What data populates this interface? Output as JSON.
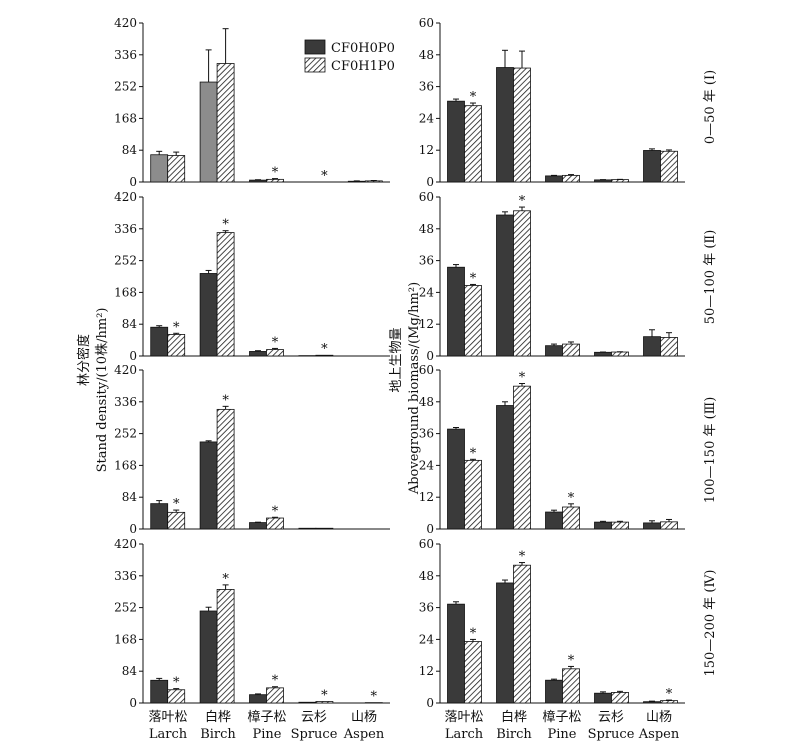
{
  "chart_data": {
    "type": "bar",
    "categories_cn": [
      "落叶松",
      "白桦",
      "樟子松",
      "云杉",
      "山杨"
    ],
    "categories_en": [
      "Larch",
      "Birch",
      "Pine",
      "Spruce",
      "Aspen"
    ],
    "series_names": [
      "CF0H0P0",
      "CF0H1P0"
    ],
    "periods": [
      "0—50 年 (Ⅰ)",
      "50—100 年 (Ⅱ)",
      "100—150 年 (Ⅲ)",
      "150—200 年 (Ⅳ)"
    ],
    "density": {
      "ylabel_cn": "林分密度",
      "ylabel_en": "Stand density/(10株/hm²)",
      "ylim": [
        0,
        420
      ],
      "ticks": [
        0,
        84,
        168,
        252,
        336,
        420
      ],
      "panels": [
        {
          "values": [
            [
              72,
              70
            ],
            [
              264,
              313
            ],
            [
              5,
              7
            ],
            [
              0,
              0
            ],
            [
              2,
              3
            ]
          ],
          "errors": [
            [
              9,
              9
            ],
            [
              85,
              92
            ],
            [
              1,
              2
            ],
            [
              0,
              0
            ],
            [
              1,
              1
            ]
          ],
          "stars": [
            [
              false,
              false
            ],
            [
              false,
              false
            ],
            [
              false,
              true
            ],
            [
              false,
              true
            ],
            [
              false,
              false
            ]
          ]
        },
        {
          "values": [
            [
              76,
              57
            ],
            [
              218,
              326
            ],
            [
              12,
              17
            ],
            [
              1,
              2
            ],
            [
              0,
              0
            ]
          ],
          "errors": [
            [
              4,
              3
            ],
            [
              8,
              5
            ],
            [
              2,
              3
            ],
            [
              0,
              0
            ],
            [
              0,
              0
            ]
          ],
          "stars": [
            [
              false,
              true
            ],
            [
              false,
              true
            ],
            [
              false,
              true
            ],
            [
              false,
              true
            ],
            [
              false,
              false
            ]
          ]
        },
        {
          "values": [
            [
              67,
              44
            ],
            [
              230,
              316
            ],
            [
              17,
              29
            ],
            [
              2,
              2
            ],
            [
              0,
              0
            ]
          ],
          "errors": [
            [
              8,
              6
            ],
            [
              3,
              8
            ],
            [
              1,
              2
            ],
            [
              0,
              0
            ],
            [
              0,
              0
            ]
          ],
          "stars": [
            [
              false,
              true
            ],
            [
              false,
              true
            ],
            [
              false,
              true
            ],
            [
              false,
              false
            ],
            [
              false,
              false
            ]
          ]
        },
        {
          "values": [
            [
              60,
              35
            ],
            [
              243,
              300
            ],
            [
              22,
              40
            ],
            [
              2,
              4
            ],
            [
              0,
              1
            ]
          ],
          "errors": [
            [
              5,
              3
            ],
            [
              10,
              12
            ],
            [
              2,
              3
            ],
            [
              0,
              0
            ],
            [
              0,
              0
            ]
          ],
          "stars": [
            [
              false,
              true
            ],
            [
              false,
              true
            ],
            [
              false,
              true
            ],
            [
              false,
              true
            ],
            [
              false,
              true
            ]
          ]
        }
      ]
    },
    "biomass": {
      "ylabel_cn": "地上生物量",
      "ylabel_en": "Aboveground biomass/(Mg/hm²)",
      "ylim": [
        0,
        60
      ],
      "ticks": [
        0,
        12,
        24,
        36,
        48,
        60
      ],
      "panels": [
        {
          "values": [
            [
              30.5,
              28.8
            ],
            [
              43.2,
              43.0
            ],
            [
              2.3,
              2.5
            ],
            [
              0.8,
              0.9
            ],
            [
              11.9,
              11.6
            ]
          ],
          "errors": [
            [
              0.8,
              1.0
            ],
            [
              6.5,
              6.4
            ],
            [
              0.2,
              0.3
            ],
            [
              0.1,
              0.1
            ],
            [
              0.6,
              0.5
            ]
          ],
          "stars": [
            [
              false,
              true
            ],
            [
              false,
              false
            ],
            [
              false,
              false
            ],
            [
              false,
              false
            ],
            [
              false,
              false
            ]
          ]
        },
        {
          "values": [
            [
              33.5,
              26.6
            ],
            [
              53.2,
              54.8
            ],
            [
              3.9,
              4.5
            ],
            [
              1.4,
              1.5
            ],
            [
              7.3,
              7.0
            ]
          ],
          "errors": [
            [
              1.0,
              0.4
            ],
            [
              1.2,
              1.4
            ],
            [
              0.6,
              0.8
            ],
            [
              0.1,
              0.1
            ],
            [
              2.6,
              1.8
            ]
          ],
          "stars": [
            [
              false,
              true
            ],
            [
              false,
              true
            ],
            [
              false,
              false
            ],
            [
              false,
              false
            ],
            [
              false,
              false
            ]
          ]
        },
        {
          "values": [
            [
              37.7,
              25.9
            ],
            [
              46.6,
              53.9
            ],
            [
              6.4,
              8.3
            ],
            [
              2.6,
              2.6
            ],
            [
              2.3,
              2.7
            ]
          ],
          "errors": [
            [
              0.6,
              0.4
            ],
            [
              1.4,
              1.0
            ],
            [
              0.7,
              1.2
            ],
            [
              0.3,
              0.3
            ],
            [
              0.8,
              0.9
            ]
          ],
          "stars": [
            [
              false,
              true
            ],
            [
              false,
              true
            ],
            [
              false,
              true
            ],
            [
              false,
              false
            ],
            [
              false,
              false
            ]
          ]
        },
        {
          "values": [
            [
              37.3,
              23.2
            ],
            [
              45.3,
              52.0
            ],
            [
              8.6,
              12.9
            ],
            [
              3.7,
              4.0
            ],
            [
              0.5,
              0.9
            ]
          ],
          "errors": [
            [
              0.9,
              0.8
            ],
            [
              1.1,
              1.0
            ],
            [
              0.4,
              0.9
            ],
            [
              0.5,
              0.4
            ],
            [
              0.2,
              0.2
            ]
          ],
          "stars": [
            [
              false,
              true
            ],
            [
              false,
              true
            ],
            [
              false,
              true
            ],
            [
              false,
              false
            ],
            [
              false,
              true
            ]
          ]
        }
      ]
    },
    "colors": {
      "series1": "#3a3a3a",
      "series1_col0_density_panel0": "#8c8c8c",
      "series2_hatch": "#1a1a1a",
      "axis": "#111111"
    }
  }
}
